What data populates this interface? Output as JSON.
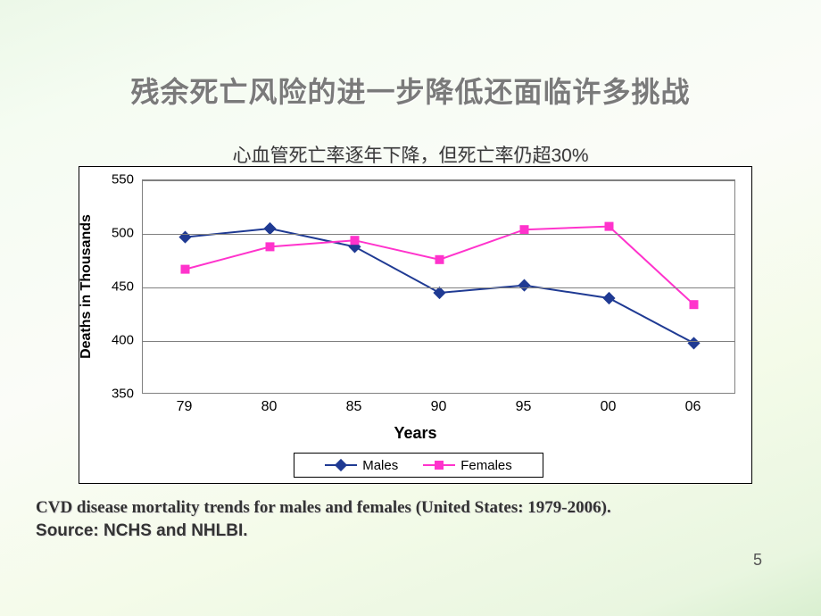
{
  "title": "残余死亡风险的进一步降低还面临许多挑战",
  "subtitle": "心血管死亡率逐年下降，但死亡率仍超30%",
  "caption_line1": "CVD disease mortality trends for males and females (United States: 1979-2006).",
  "caption_line2": "Source: NCHS and NHLBI.",
  "page_number": "5",
  "chart": {
    "type": "line",
    "background_color": "#ffffff",
    "border_color": "#000000",
    "grid_color": "#808080",
    "xlabel": "Years",
    "ylabel": "Deaths in Thousands",
    "label_fontsize": 16,
    "tick_fontsize": 15,
    "x_categories": [
      "79",
      "80",
      "85",
      "90",
      "95",
      "00",
      "06"
    ],
    "ylim": [
      350,
      550
    ],
    "ytick_step": 50,
    "yticks": [
      "350",
      "400",
      "450",
      "500",
      "550"
    ],
    "series": [
      {
        "name": "Males",
        "color": "#1f3a93",
        "line_width": 2,
        "marker": "diamond",
        "marker_size": 10,
        "values": [
          497,
          505,
          488,
          445,
          452,
          440,
          398
        ]
      },
      {
        "name": "Females",
        "color": "#ff33cc",
        "line_width": 2,
        "marker": "square",
        "marker_size": 10,
        "values": [
          467,
          488,
          494,
          476,
          504,
          507,
          434
        ]
      }
    ],
    "legend": {
      "position": "bottom",
      "labels": [
        "Males",
        "Females"
      ]
    }
  }
}
